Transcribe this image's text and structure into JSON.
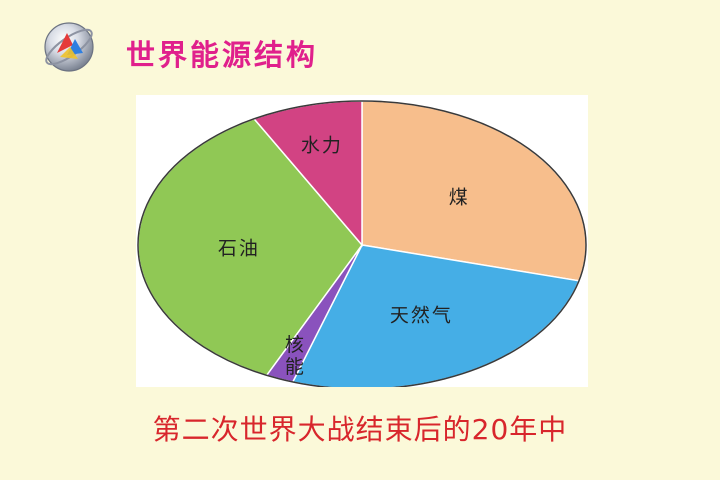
{
  "slide": {
    "title": "世界能源结构",
    "caption": "第二次世界大战结束后的20年中"
  },
  "icons": {
    "logo": "presentation-app-logo-icon"
  },
  "chart_data": {
    "type": "pie",
    "labels": [
      "煤",
      "天然气",
      "核能",
      "石油",
      "水力"
    ],
    "values": [
      29,
      26,
      2,
      35,
      8
    ],
    "unit": "%",
    "colors": [
      "#f7be8c",
      "#45aee6",
      "#8a52bd",
      "#90c855",
      "#d24383"
    ],
    "start": "top, clockwise"
  }
}
